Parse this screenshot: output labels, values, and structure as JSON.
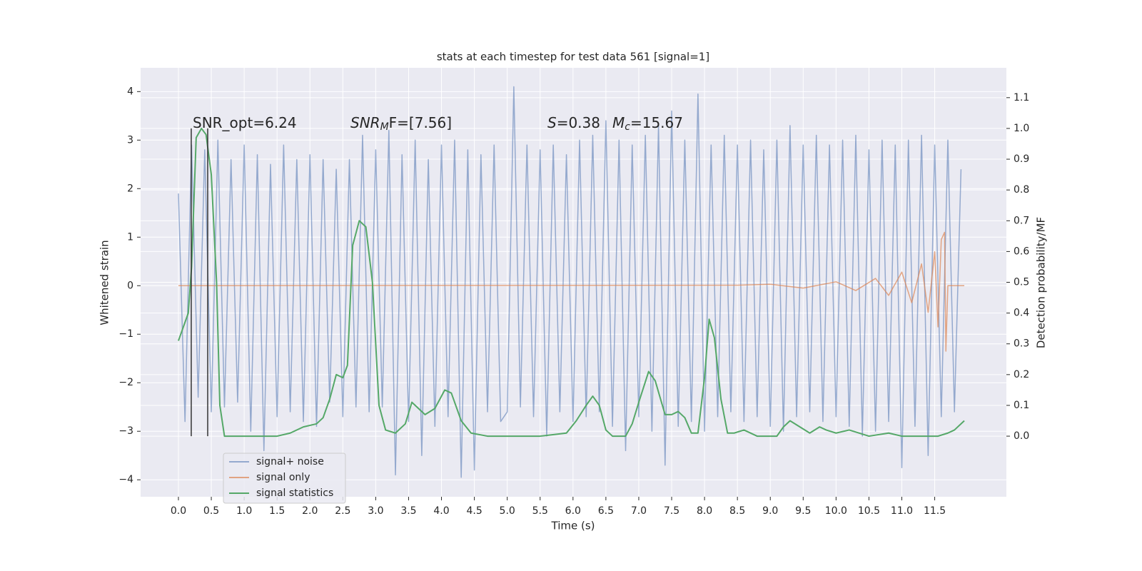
{
  "chart_data": {
    "type": "line",
    "title": "stats at each timestep for test data 561 [signal=1]",
    "xlabel": "Time (s)",
    "ylabel": "Whitened strain",
    "y2label": "Detection probability/MF",
    "xlim": [
      -0.575,
      12.59
    ],
    "ylim": [
      -4.35,
      4.49
    ],
    "y2lim": [
      -0.197,
      1.197
    ],
    "xticks": [
      {
        "value": 0,
        "label": "0.0"
      },
      0.5,
      {
        "value": 1,
        "label": "1.0"
      },
      1.5,
      {
        "value": 2,
        "label": "2.0"
      },
      2.5,
      {
        "value": 3,
        "label": "3.0"
      },
      3.5,
      {
        "value": 4,
        "label": "4.0"
      },
      4.5,
      {
        "value": 5,
        "label": "5.0"
      },
      5.5,
      {
        "value": 6,
        "label": "6.0"
      },
      6.5,
      {
        "value": 7,
        "label": "7.0"
      },
      7.5,
      {
        "value": 8,
        "label": "8.0"
      },
      8.5,
      {
        "value": 9,
        "label": "9.0"
      },
      9.5,
      {
        "value": 10,
        "label": "10.0"
      },
      10.5,
      {
        "value": 11,
        "label": "11.0"
      },
      11.5
    ],
    "yticks": [
      {
        "value": -4,
        "label": "−4"
      },
      {
        "value": -3,
        "label": "−3"
      },
      {
        "value": -2,
        "label": "−2"
      },
      {
        "value": -1,
        "label": "−1"
      },
      0,
      1,
      2,
      3,
      4
    ],
    "y2ticks": [
      {
        "value": 0,
        "label": "0.0"
      },
      0.1,
      0.2,
      0.3,
      0.4,
      0.5,
      0.6,
      0.7,
      0.8,
      0.9,
      {
        "value": 1,
        "label": "1.0"
      },
      1.1
    ],
    "grid": true,
    "series": [
      {
        "name": "signal+ noise",
        "color": "#4c72b0",
        "alpha": 0.55,
        "x": [
          0,
          0.1,
          0.2,
          0.3,
          0.4,
          0.5,
          0.6,
          0.7,
          0.8,
          0.9,
          1,
          1.1,
          1.2,
          1.3,
          1.4,
          1.5,
          1.6,
          1.7,
          1.8,
          1.9,
          2,
          2.1,
          2.2,
          2.3,
          2.4,
          2.5,
          2.6,
          2.7,
          2.8,
          2.9,
          3,
          3.1,
          3.2,
          3.3,
          3.4,
          3.5,
          3.6,
          3.7,
          3.8,
          3.9,
          4,
          4.1,
          4.2,
          4.3,
          4.4,
          4.5,
          4.6,
          4.7,
          4.8,
          4.9,
          5,
          5.1,
          5.2,
          5.3,
          5.4,
          5.5,
          5.6,
          5.7,
          5.8,
          5.9,
          6,
          6.1,
          6.2,
          6.3,
          6.4,
          6.5,
          6.6,
          6.7,
          6.8,
          6.9,
          7,
          7.1,
          7.2,
          7.3,
          7.4,
          7.5,
          7.6,
          7.7,
          7.8,
          7.9,
          8,
          8.1,
          8.2,
          8.3,
          8.4,
          8.5,
          8.6,
          8.7,
          8.8,
          8.9,
          9,
          9.1,
          9.2,
          9.3,
          9.4,
          9.5,
          9.6,
          9.7,
          9.8,
          9.9,
          10,
          10.1,
          10.2,
          10.3,
          10.4,
          10.5,
          10.6,
          10.7,
          10.8,
          10.9,
          11,
          11.1,
          11.2,
          11.3,
          11.4,
          11.5,
          11.6,
          11.7,
          11.8,
          11.9
        ],
        "values": [
          1.9,
          -2.8,
          2.9,
          -2.3,
          2.8,
          -2.6,
          3.0,
          -2.5,
          2.6,
          -2.4,
          2.9,
          -3.0,
          2.7,
          -3.4,
          2.5,
          -2.7,
          2.9,
          -2.6,
          2.6,
          -2.8,
          2.7,
          -2.9,
          2.6,
          -2.4,
          2.4,
          -2.7,
          2.6,
          -2.5,
          3.1,
          -2.6,
          2.8,
          -2.5,
          3.2,
          -3.9,
          2.7,
          -2.8,
          3.0,
          -3.5,
          2.6,
          -2.9,
          2.9,
          -2.7,
          3.0,
          -3.95,
          2.8,
          -3.8,
          2.7,
          -2.6,
          2.9,
          -2.8,
          -2.6,
          4.1,
          -2.5,
          2.9,
          -2.7,
          2.8,
          -3.1,
          2.9,
          -2.6,
          2.7,
          -2.8,
          3.0,
          -2.7,
          3.1,
          -2.6,
          3.4,
          -2.9,
          3.0,
          -3.4,
          2.9,
          -2.7,
          3.1,
          -3.0,
          3.3,
          -3.7,
          3.6,
          -2.9,
          3.0,
          -2.8,
          3.95,
          -3.0,
          2.9,
          -2.7,
          3.1,
          -2.6,
          2.9,
          -2.8,
          3.0,
          -2.7,
          2.8,
          -2.9,
          3.0,
          -3.0,
          3.3,
          -2.7,
          2.9,
          -2.6,
          3.1,
          -2.8,
          2.9,
          -2.7,
          3.0,
          -2.9,
          3.1,
          -3.1,
          2.8,
          -3.0,
          3.0,
          -2.8,
          2.9,
          -3.75,
          3.0,
          -2.9,
          3.1,
          -3.5,
          2.9,
          -2.7,
          3.0,
          -2.6,
          2.4
        ]
      },
      {
        "name": "signal only",
        "color": "#dd8452",
        "alpha": 0.7,
        "x": [
          0,
          8.5,
          9,
          9.5,
          10,
          10.3,
          10.6,
          10.8,
          11,
          11.15,
          11.3,
          11.4,
          11.5,
          11.55,
          11.6,
          11.65,
          11.67,
          11.7,
          11.95
        ],
        "values": [
          0,
          0.01,
          0.03,
          -0.05,
          0.08,
          -0.1,
          0.15,
          -0.2,
          0.28,
          -0.35,
          0.45,
          -0.55,
          0.7,
          -0.85,
          0.95,
          1.1,
          -1.35,
          0,
          0
        ]
      },
      {
        "name": "signal statistics",
        "color": "#55a868",
        "alpha": 1,
        "axis": "y2",
        "x": [
          0,
          0.15,
          0.2,
          0.27,
          0.35,
          0.42,
          0.5,
          0.58,
          0.63,
          0.7,
          1,
          1.5,
          1.7,
          1.9,
          2.1,
          2.2,
          2.3,
          2.4,
          2.5,
          2.57,
          2.65,
          2.75,
          2.85,
          2.95,
          3.05,
          3.15,
          3.3,
          3.45,
          3.55,
          3.65,
          3.75,
          3.9,
          4.05,
          4.15,
          4.3,
          4.45,
          4.7,
          5.5,
          5.9,
          6.05,
          6.2,
          6.3,
          6.4,
          6.5,
          6.6,
          6.8,
          6.9,
          7,
          7.15,
          7.25,
          7.4,
          7.5,
          7.6,
          7.7,
          7.8,
          7.9,
          8,
          8.07,
          8.15,
          8.25,
          8.35,
          8.45,
          8.6,
          8.8,
          9.1,
          9.2,
          9.3,
          9.45,
          9.6,
          9.75,
          9.85,
          10,
          10.2,
          10.5,
          10.8,
          11,
          11.55,
          11.7,
          11.8,
          11.95
        ],
        "values": [
          0.31,
          0.4,
          0.55,
          0.97,
          1.0,
          0.98,
          0.85,
          0.5,
          0.1,
          0,
          0,
          0,
          0.01,
          0.03,
          0.04,
          0.06,
          0.12,
          0.2,
          0.19,
          0.23,
          0.62,
          0.7,
          0.68,
          0.5,
          0.1,
          0.02,
          0.01,
          0.04,
          0.11,
          0.09,
          0.07,
          0.09,
          0.15,
          0.14,
          0.05,
          0.01,
          0,
          0,
          0.01,
          0.05,
          0.1,
          0.13,
          0.1,
          0.02,
          0,
          0,
          0.04,
          0.11,
          0.21,
          0.18,
          0.07,
          0.07,
          0.08,
          0.06,
          0.01,
          0.01,
          0.19,
          0.38,
          0.32,
          0.12,
          0.01,
          0.01,
          0.02,
          0,
          0,
          0.03,
          0.05,
          0.03,
          0.01,
          0.03,
          0.02,
          0.01,
          0.02,
          0,
          0.01,
          0,
          0,
          0.01,
          0.02,
          0.05
        ]
      }
    ],
    "vlines": {
      "color": "#333333",
      "x": [
        0.195,
        0.445
      ],
      "ymin": 0,
      "ymax": 1
    },
    "annotations": [
      [
        "SNR_opt=6.24"
      ],
      [
        "SNR",
        "M",
        "F=[7.56]"
      ],
      [
        "S",
        "=0.38"
      ],
      [
        "M",
        "c",
        "=15.67"
      ]
    ]
  }
}
